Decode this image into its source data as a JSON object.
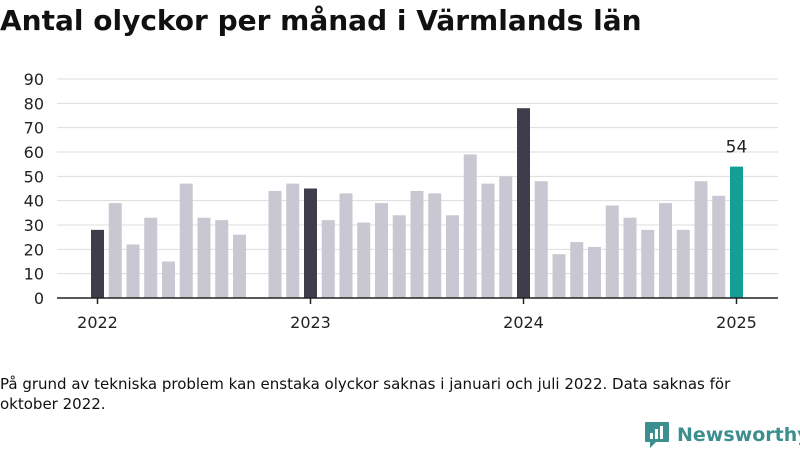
{
  "colors": {
    "bar_default": "#c9c7d2",
    "bar_january": "#3f3d4b",
    "bar_latest": "#159e96",
    "grid": "#dddddd",
    "axis": "#222222",
    "brand": "#3d8f8f"
  },
  "logo": {
    "text": "Newsworthy",
    "icon": "newsworthy-logo-icon"
  },
  "chart_data": {
    "type": "bar",
    "title": "Antal olyckor per månad i Värmlands län",
    "xlabel": "",
    "ylabel": "",
    "ylim": [
      0,
      90
    ],
    "yticks": [
      0,
      10,
      20,
      30,
      40,
      50,
      60,
      70,
      80,
      90
    ],
    "grid": true,
    "legend": "none",
    "note": "På grund av tekniska problem kan enstaka olyckor saknas i januari och juli 2022. Data saknas för oktober 2022.",
    "x_tick_labels": [
      {
        "label": "2022",
        "month": "2022-01"
      },
      {
        "label": "2023",
        "month": "2023-01"
      },
      {
        "label": "2024",
        "month": "2024-01"
      },
      {
        "label": "2025",
        "month": "2025-01"
      }
    ],
    "highlight_label": {
      "month": "2025-01",
      "text": "54"
    },
    "months": [
      "2022-01",
      "2022-02",
      "2022-03",
      "2022-04",
      "2022-05",
      "2022-06",
      "2022-07",
      "2022-08",
      "2022-09",
      "2022-10",
      "2022-11",
      "2022-12",
      "2023-01",
      "2023-02",
      "2023-03",
      "2023-04",
      "2023-05",
      "2023-06",
      "2023-07",
      "2023-08",
      "2023-09",
      "2023-10",
      "2023-11",
      "2023-12",
      "2024-01",
      "2024-02",
      "2024-03",
      "2024-04",
      "2024-05",
      "2024-06",
      "2024-07",
      "2024-08",
      "2024-09",
      "2024-10",
      "2024-11",
      "2024-12",
      "2025-01"
    ],
    "values": [
      28,
      39,
      22,
      33,
      15,
      47,
      33,
      32,
      26,
      null,
      44,
      47,
      45,
      32,
      43,
      31,
      39,
      34,
      44,
      43,
      34,
      59,
      47,
      50,
      78,
      48,
      18,
      23,
      21,
      38,
      33,
      28,
      39,
      28,
      48,
      42,
      54
    ]
  }
}
